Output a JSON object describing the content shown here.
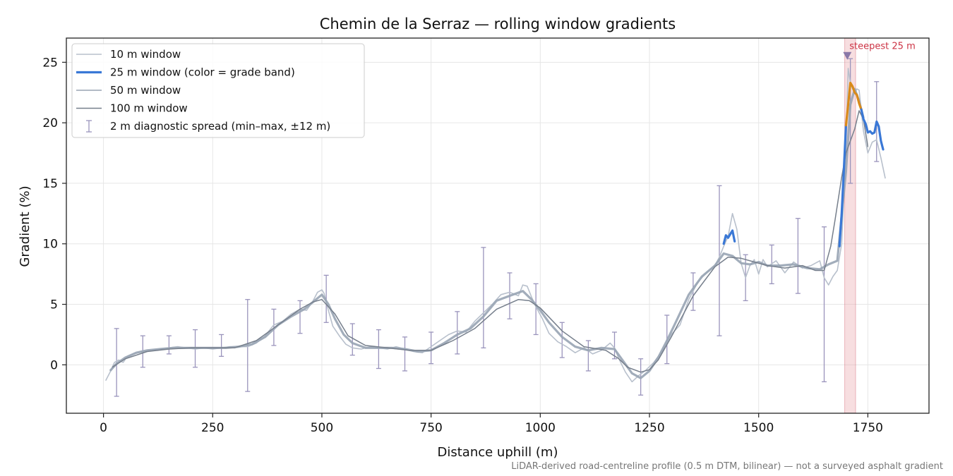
{
  "chart_data": {
    "type": "line",
    "title": "Chemin de la Serraz — rolling window gradients",
    "xlabel": "Distance uphill (m)",
    "ylabel": "Gradient (%)",
    "xlim": [
      -85,
      1890
    ],
    "ylim": [
      -4,
      27
    ],
    "x_ticks": [
      0,
      250,
      500,
      750,
      1000,
      1250,
      1500,
      1750
    ],
    "y_ticks": [
      0,
      5,
      10,
      15,
      20,
      25
    ],
    "grid": true,
    "legend_position": "top-left",
    "footnote": "LiDAR-derived road-centreline profile (0.5 m DTM, bilinear) — not a surveyed asphalt gradient",
    "legend": [
      {
        "label": "10 m window",
        "color": "#b8c0cc",
        "style": "line"
      },
      {
        "label": "25 m window (color = grade band)",
        "color": "#3a78d6",
        "style": "thick-line"
      },
      {
        "label": "50 m window",
        "color": "#98a4b4",
        "style": "line"
      },
      {
        "label": "100 m window",
        "color": "#767f8c",
        "style": "line"
      },
      {
        "label": "2 m diagnostic spread (min–max, ±12 m)",
        "color": "#9a94bc",
        "style": "errorbar"
      }
    ],
    "highlight": {
      "label": "steepest 25 m",
      "x_start": 1697,
      "x_end": 1722,
      "marker_x": 1703,
      "marker_y": 25.5,
      "color": "#e8a0a6",
      "label_color": "#cc3344"
    },
    "grade_band_colors": {
      "normal": "#3a78d6",
      "steep": "#d98a1a"
    },
    "series": [
      {
        "name": "10 m window",
        "color": "#b8c0cc",
        "x": [
          5,
          15,
          25,
          35,
          45,
          55,
          70,
          90,
          110,
          130,
          150,
          170,
          190,
          210,
          230,
          250,
          270,
          290,
          310,
          330,
          350,
          370,
          390,
          410,
          430,
          450,
          465,
          480,
          490,
          500,
          505,
          515,
          525,
          540,
          555,
          570,
          590,
          610,
          630,
          650,
          670,
          690,
          710,
          730,
          750,
          770,
          790,
          810,
          830,
          850,
          870,
          890,
          910,
          930,
          950,
          960,
          970,
          980,
          990,
          1005,
          1020,
          1040,
          1060,
          1080,
          1100,
          1120,
          1140,
          1160,
          1170,
          1180,
          1195,
          1210,
          1225,
          1240,
          1260,
          1280,
          1300,
          1320,
          1340,
          1360,
          1380,
          1400,
          1410,
          1420,
          1430,
          1440,
          1450,
          1460,
          1470,
          1480,
          1490,
          1500,
          1510,
          1520,
          1540,
          1560,
          1580,
          1600,
          1620,
          1640,
          1650,
          1660,
          1670,
          1680,
          1690,
          1700,
          1705,
          1710,
          1715,
          1720,
          1725,
          1730,
          1740,
          1750,
          1760,
          1770,
          1780,
          1790
        ],
        "values": [
          -1.3,
          -0.6,
          0.2,
          0.4,
          0.2,
          0.7,
          0.9,
          1.1,
          1.2,
          1.3,
          1.4,
          1.5,
          1.4,
          1.3,
          1.4,
          1.3,
          1.4,
          1.5,
          1.5,
          1.5,
          1.8,
          2.4,
          3.3,
          3.6,
          4.2,
          4.6,
          4.5,
          5.3,
          6.0,
          6.2,
          5.9,
          4.5,
          3.2,
          2.4,
          1.7,
          1.4,
          1.3,
          1.5,
          1.4,
          1.3,
          1.5,
          1.3,
          1.1,
          1.0,
          1.5,
          2.0,
          2.5,
          2.8,
          2.7,
          3.6,
          4.3,
          5.0,
          5.8,
          6.0,
          5.7,
          6.6,
          6.5,
          5.6,
          4.8,
          3.8,
          2.6,
          1.9,
          1.5,
          1.0,
          1.4,
          0.9,
          1.2,
          1.8,
          1.4,
          0.5,
          -0.6,
          -1.4,
          -0.9,
          -0.5,
          0.2,
          1.2,
          2.5,
          3.3,
          5.4,
          6.8,
          7.6,
          8.2,
          8.9,
          9.8,
          10.6,
          12.5,
          11.2,
          8.4,
          7.2,
          8.2,
          8.7,
          7.5,
          8.7,
          8.1,
          8.6,
          7.6,
          8.5,
          8.0,
          8.2,
          8.6,
          7.2,
          6.6,
          7.3,
          7.8,
          10.0,
          18.0,
          24.5,
          23.3,
          22.8,
          22.5,
          22.8,
          22.7,
          19.3,
          17.5,
          18.4,
          18.6,
          17.1,
          15.4
        ]
      },
      {
        "name": "25 m window (color = grade band)",
        "color": "#3a78d6",
        "x": [
          1420,
          1425,
          1430,
          1435,
          1440,
          1445,
          1685,
          1690,
          1695,
          1700,
          1705,
          1710,
          1715,
          1720,
          1725,
          1730,
          1735,
          1740,
          1745,
          1750,
          1755,
          1760,
          1765,
          1770,
          1775,
          1780,
          1785
        ],
        "values": [
          10.0,
          10.7,
          10.5,
          10.8,
          11.1,
          10.2,
          9.8,
          12.5,
          16.0,
          19.8,
          21.5,
          23.3,
          23.0,
          22.5,
          22.3,
          21.6,
          21.1,
          20.3,
          19.9,
          19.2,
          19.3,
          19.1,
          19.2,
          20.1,
          19.7,
          18.5,
          17.8
        ],
        "segments": [
          {
            "band": "normal",
            "from_index": 0,
            "to_index": 5
          },
          {
            "band": "normal",
            "from_index": 6,
            "to_index": 9
          },
          {
            "band": "steep",
            "from_index": 9,
            "to_index": 16
          },
          {
            "band": "normal",
            "from_index": 16,
            "to_index": 26
          }
        ]
      },
      {
        "name": "50 m window",
        "color": "#98a4b4",
        "x": [
          15,
          30,
          50,
          75,
          100,
          130,
          160,
          190,
          220,
          250,
          280,
          310,
          340,
          370,
          400,
          430,
          460,
          480,
          500,
          515,
          530,
          550,
          570,
          600,
          630,
          660,
          690,
          720,
          750,
          780,
          810,
          840,
          870,
          900,
          930,
          960,
          980,
          1000,
          1020,
          1050,
          1080,
          1110,
          1140,
          1170,
          1190,
          1210,
          1230,
          1250,
          1270,
          1290,
          1310,
          1340,
          1370,
          1400,
          1420,
          1440,
          1460,
          1480,
          1500,
          1520,
          1550,
          1580,
          1610,
          1640,
          1660,
          1680,
          1700,
          1710,
          1720,
          1730,
          1740
        ],
        "values": [
          -0.5,
          0.1,
          0.6,
          1.0,
          1.2,
          1.3,
          1.4,
          1.4,
          1.4,
          1.4,
          1.4,
          1.5,
          1.7,
          2.3,
          3.3,
          4.0,
          4.6,
          5.2,
          5.8,
          5.0,
          3.8,
          2.5,
          1.8,
          1.4,
          1.4,
          1.4,
          1.3,
          1.1,
          1.2,
          1.8,
          2.5,
          3.0,
          4.0,
          5.3,
          5.7,
          6.1,
          5.4,
          4.5,
          3.5,
          2.3,
          1.5,
          1.2,
          1.4,
          1.3,
          0.3,
          -0.7,
          -1.1,
          -0.5,
          0.6,
          2.0,
          3.5,
          5.8,
          7.3,
          8.2,
          9.2,
          9.0,
          8.4,
          8.3,
          8.5,
          8.2,
          8.2,
          8.3,
          8.0,
          7.9,
          8.3,
          8.6,
          16.0,
          21.5,
          22.8,
          21.8,
          20.4
        ]
      },
      {
        "name": "100 m window",
        "color": "#767f8c",
        "x": [
          20,
          50,
          100,
          150,
          200,
          250,
          300,
          350,
          400,
          450,
          480,
          500,
          530,
          560,
          600,
          650,
          700,
          750,
          800,
          850,
          900,
          950,
          975,
          1000,
          1050,
          1100,
          1150,
          1180,
          1200,
          1230,
          1250,
          1270,
          1300,
          1350,
          1400,
          1430,
          1460,
          1490,
          1520,
          1560,
          1600,
          1630,
          1650,
          1665,
          1675,
          1690,
          1700,
          1710,
          1720,
          1730,
          1740,
          1750
        ],
        "values": [
          -0.2,
          0.5,
          1.1,
          1.3,
          1.4,
          1.4,
          1.4,
          2.0,
          3.3,
          4.6,
          5.2,
          5.4,
          4.2,
          2.4,
          1.6,
          1.4,
          1.2,
          1.2,
          2.0,
          3.0,
          4.6,
          5.4,
          5.3,
          4.7,
          2.8,
          1.5,
          1.2,
          0.5,
          -0.2,
          -0.6,
          -0.4,
          0.4,
          2.3,
          5.7,
          8.1,
          8.9,
          8.8,
          8.5,
          8.2,
          8.0,
          8.2,
          7.8,
          7.8,
          9.8,
          12.0,
          15.5,
          17.5,
          18.5,
          19.5,
          21.0,
          20.3,
          18.0
        ]
      }
    ],
    "diagnostic_spread": [
      {
        "x": 30,
        "low": -2.6,
        "high": 3.0
      },
      {
        "x": 90,
        "low": -0.2,
        "high": 2.4
      },
      {
        "x": 150,
        "low": 0.9,
        "high": 2.4
      },
      {
        "x": 210,
        "low": -0.2,
        "high": 2.9
      },
      {
        "x": 270,
        "low": 0.7,
        "high": 2.5
      },
      {
        "x": 330,
        "low": -2.2,
        "high": 5.4
      },
      {
        "x": 390,
        "low": 1.6,
        "high": 4.6
      },
      {
        "x": 450,
        "low": 2.6,
        "high": 5.3
      },
      {
        "x": 510,
        "low": 3.5,
        "high": 7.4
      },
      {
        "x": 570,
        "low": 0.8,
        "high": 3.4
      },
      {
        "x": 630,
        "low": -0.3,
        "high": 2.9
      },
      {
        "x": 690,
        "low": -0.5,
        "high": 2.3
      },
      {
        "x": 750,
        "low": 0.1,
        "high": 2.7
      },
      {
        "x": 810,
        "low": 0.9,
        "high": 4.4
      },
      {
        "x": 870,
        "low": 1.4,
        "high": 9.7
      },
      {
        "x": 930,
        "low": 3.8,
        "high": 7.6
      },
      {
        "x": 990,
        "low": 2.5,
        "high": 6.7
      },
      {
        "x": 1050,
        "low": 0.6,
        "high": 3.5
      },
      {
        "x": 1110,
        "low": -0.5,
        "high": 2.0
      },
      {
        "x": 1170,
        "low": 0.5,
        "high": 2.7
      },
      {
        "x": 1230,
        "low": -2.5,
        "high": 0.5
      },
      {
        "x": 1290,
        "low": 0.1,
        "high": 4.1
      },
      {
        "x": 1350,
        "low": 4.5,
        "high": 7.6
      },
      {
        "x": 1410,
        "low": 2.4,
        "high": 14.8
      },
      {
        "x": 1470,
        "low": 5.3,
        "high": 9.1
      },
      {
        "x": 1530,
        "low": 6.7,
        "high": 9.9
      },
      {
        "x": 1590,
        "low": 5.9,
        "high": 12.1
      },
      {
        "x": 1650,
        "low": -1.4,
        "high": 11.4
      },
      {
        "x": 1710,
        "low": 15.0,
        "high": 25.3
      },
      {
        "x": 1770,
        "low": 16.8,
        "high": 23.4
      }
    ]
  }
}
